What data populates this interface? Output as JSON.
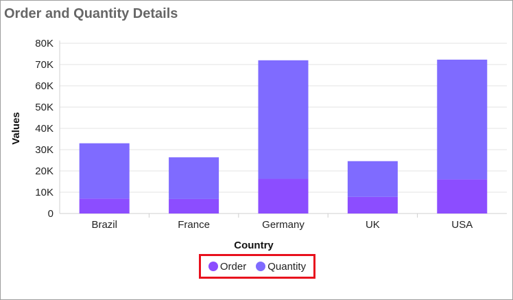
{
  "title": "Order and Quantity Details",
  "colors": {
    "order": "#8c4dff",
    "quantity": "#7f6bff",
    "grid": "#e3e3e3",
    "axis": "#cfcfcf",
    "legend_border": "#e8101d",
    "title": "#666666"
  },
  "chart_data": {
    "type": "bar",
    "stacked": true,
    "categories": [
      "Brazil",
      "France",
      "Germany",
      "UK",
      "USA"
    ],
    "series": [
      {
        "name": "Order",
        "values": [
          7000,
          6800,
          16300,
          7800,
          16000
        ]
      },
      {
        "name": "Quantity",
        "values": [
          26000,
          19600,
          55700,
          16800,
          56300
        ]
      }
    ],
    "xlabel": "Country",
    "ylabel": "Values",
    "ylim": [
      0,
      80000
    ],
    "yticks": [
      0,
      10000,
      20000,
      30000,
      40000,
      50000,
      60000,
      70000,
      80000
    ],
    "ytick_labels": [
      "0",
      "10K",
      "20K",
      "30K",
      "40K",
      "50K",
      "60K",
      "70K",
      "80K"
    ],
    "grid": true,
    "legend": {
      "placement": "bottom-center",
      "items": [
        "Order",
        "Quantity"
      ]
    }
  }
}
